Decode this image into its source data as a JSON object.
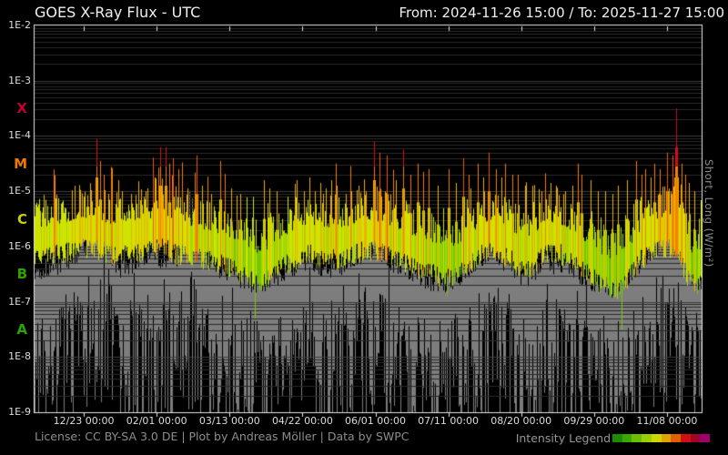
{
  "header": {
    "title": "GOES X-Ray Flux - UTC",
    "range": "From: 2024-11-26 15:00  /  To: 2025-11-27 15:00"
  },
  "footer": {
    "license": "License: CC BY-SA 3.0 DE | Plot by Andreas Möller | Data by SWPC",
    "legend_label": "Intensity Legend"
  },
  "chart_data": {
    "type": "area",
    "title": "GOES X-Ray Flux - UTC",
    "time_range": {
      "from": "2024-11-26 15:00",
      "to": "2025-11-27 15:00"
    },
    "days_total": 366,
    "right_axis_label": "Short, Long (W/m²)",
    "background": "#000000",
    "y_log_range": [
      -2,
      -9
    ],
    "y_ticks": [
      {
        "label": "1E-2",
        "log": -2
      },
      {
        "label": "1E-3",
        "log": -3
      },
      {
        "label": "1E-4",
        "log": -4
      },
      {
        "label": "1E-5",
        "log": -5
      },
      {
        "label": "1E-6",
        "log": -6
      },
      {
        "label": "1E-7",
        "log": -7
      },
      {
        "label": "1E-8",
        "log": -8
      },
      {
        "label": "1E-9",
        "log": -9
      }
    ],
    "x_ticks": [
      {
        "label": "12/23 00:00",
        "day": 27
      },
      {
        "label": "02/01 00:00",
        "day": 67
      },
      {
        "label": "03/13 00:00",
        "day": 107
      },
      {
        "label": "04/22 00:00",
        "day": 147
      },
      {
        "label": "06/01 00:00",
        "day": 187
      },
      {
        "label": "07/11 00:00",
        "day": 227
      },
      {
        "label": "08/20 00:00",
        "day": 267
      },
      {
        "label": "09/29 00:00",
        "day": 307
      },
      {
        "label": "11/08 00:00",
        "day": 347
      }
    ],
    "class_letters": [
      {
        "label": "X",
        "log": -3.5,
        "color": "#c3002f"
      },
      {
        "label": "M",
        "log": -4.5,
        "color": "#f07800"
      },
      {
        "label": "C",
        "log": -5.5,
        "color": "#c8d400"
      },
      {
        "label": "B",
        "log": -6.5,
        "color": "#2da300"
      },
      {
        "label": "A",
        "log": -7.5,
        "color": "#2da300"
      }
    ],
    "legend_colors": [
      "#1e8c00",
      "#3aa800",
      "#6cbf00",
      "#9ccf00",
      "#ccd800",
      "#dfa400",
      "#e06000",
      "#d01010",
      "#9c0824",
      "#9e006c"
    ],
    "intensity_bands": [
      {
        "max": -6.55,
        "color": "#1e9c00"
      },
      {
        "max": -6.15,
        "color": "#46b800"
      },
      {
        "max": -5.85,
        "color": "#74c900"
      },
      {
        "max": -5.55,
        "color": "#a4d800"
      },
      {
        "max": -5.1,
        "color": "#cfe300"
      },
      {
        "max": -4.75,
        "color": "#edb100"
      },
      {
        "max": -4.45,
        "color": "#f58000"
      },
      {
        "max": -4.3,
        "color": "#f05800"
      },
      {
        "max": -3.9,
        "color": "#dd1111"
      },
      {
        "max": -2.0,
        "color": "#c2093a"
      }
    ],
    "grid": {
      "minor_color": "#2a2a2a",
      "major_color": "#3d3d3d",
      "border_color": "#e6e6e6",
      "tick_color": "#e6e6e6"
    },
    "noise_seed": 1337,
    "series": {
      "long_flux": {
        "name": "Long",
        "base_points_log10": [
          [
            0,
            -5.75
          ],
          [
            12,
            -5.68
          ],
          [
            22,
            -5.6
          ],
          [
            30,
            -5.55
          ],
          [
            36,
            -5.6
          ],
          [
            44,
            -5.72
          ],
          [
            52,
            -5.68
          ],
          [
            60,
            -5.62
          ],
          [
            68,
            -5.5
          ],
          [
            76,
            -5.65
          ],
          [
            86,
            -5.72
          ],
          [
            96,
            -5.8
          ],
          [
            106,
            -5.9
          ],
          [
            114,
            -6.0
          ],
          [
            121,
            -6.2
          ],
          [
            127,
            -6.15
          ],
          [
            134,
            -5.95
          ],
          [
            142,
            -5.78
          ],
          [
            150,
            -5.68
          ],
          [
            158,
            -5.72
          ],
          [
            166,
            -5.78
          ],
          [
            174,
            -5.68
          ],
          [
            182,
            -5.58
          ],
          [
            190,
            -5.65
          ],
          [
            198,
            -5.75
          ],
          [
            206,
            -5.85
          ],
          [
            214,
            -5.98
          ],
          [
            222,
            -6.08
          ],
          [
            228,
            -6.12
          ],
          [
            236,
            -5.95
          ],
          [
            244,
            -5.7
          ],
          [
            250,
            -5.6
          ],
          [
            256,
            -5.68
          ],
          [
            262,
            -5.8
          ],
          [
            268,
            -5.95
          ],
          [
            274,
            -5.85
          ],
          [
            280,
            -5.7
          ],
          [
            286,
            -5.62
          ],
          [
            292,
            -5.75
          ],
          [
            298,
            -5.88
          ],
          [
            304,
            -6.05
          ],
          [
            310,
            -6.2
          ],
          [
            316,
            -6.32
          ],
          [
            322,
            -6.3
          ],
          [
            327,
            -6.05
          ],
          [
            332,
            -5.8
          ],
          [
            338,
            -5.62
          ],
          [
            344,
            -5.55
          ],
          [
            350,
            -5.58
          ],
          [
            354,
            -5.75
          ],
          [
            358,
            -6.1
          ],
          [
            362,
            -6.25
          ],
          [
            366,
            -6.15
          ]
        ],
        "peaks_log10": [
          [
            15,
            -5.2
          ],
          [
            22,
            -4.9
          ],
          [
            27,
            -5.1
          ],
          [
            34,
            -4.05
          ],
          [
            36,
            -4.45
          ],
          [
            38,
            -4.7
          ],
          [
            46,
            -4.8
          ],
          [
            53,
            -5.05
          ],
          [
            57,
            -4.9
          ],
          [
            61,
            -5.0
          ],
          [
            66,
            -4.75
          ],
          [
            69,
            -4.2
          ],
          [
            72,
            -4.2
          ],
          [
            74,
            -4.5
          ],
          [
            76,
            -4.4
          ],
          [
            79,
            -4.6
          ],
          [
            84,
            -4.95
          ],
          [
            89,
            -4.35
          ],
          [
            92,
            -4.9
          ],
          [
            97,
            -5.05
          ],
          [
            102,
            -4.45
          ],
          [
            108,
            -4.95
          ],
          [
            113,
            -5.05
          ],
          [
            120,
            -5.1
          ],
          [
            126,
            -4.8
          ],
          [
            129,
            -4.95
          ],
          [
            133,
            -5.0
          ],
          [
            139,
            -5.1
          ],
          [
            144,
            -4.8
          ],
          [
            148,
            -5.0
          ],
          [
            151,
            -4.75
          ],
          [
            154,
            -5.0
          ],
          [
            157,
            -4.85
          ],
          [
            160,
            -4.95
          ],
          [
            163,
            -4.8
          ],
          [
            166,
            -4.9
          ],
          [
            171,
            -5.05
          ],
          [
            174,
            -5.0
          ],
          [
            178,
            -4.9
          ],
          [
            182,
            -5.0
          ],
          [
            186,
            -4.1
          ],
          [
            189,
            -4.3
          ],
          [
            193,
            -4.35
          ],
          [
            198,
            -4.8
          ],
          [
            202,
            -4.25
          ],
          [
            206,
            -4.7
          ],
          [
            210,
            -4.5
          ],
          [
            213,
            -4.65
          ],
          [
            216,
            -4.6
          ],
          [
            221,
            -4.9
          ],
          [
            227,
            -4.6
          ],
          [
            231,
            -4.85
          ],
          [
            235,
            -4.4
          ],
          [
            238,
            -4.7
          ],
          [
            243,
            -4.5
          ],
          [
            246,
            -4.75
          ],
          [
            249,
            -4.3
          ],
          [
            253,
            -4.6
          ],
          [
            256,
            -4.75
          ],
          [
            258,
            -4.5
          ],
          [
            262,
            -4.7
          ],
          [
            265,
            -4.7
          ],
          [
            269,
            -4.9
          ],
          [
            273,
            -4.9
          ],
          [
            278,
            -5.0
          ],
          [
            282,
            -5.05
          ],
          [
            286,
            -4.9
          ],
          [
            291,
            -5.0
          ],
          [
            295,
            -4.9
          ],
          [
            298,
            -4.5
          ],
          [
            300,
            -4.7
          ],
          [
            305,
            -4.8
          ],
          [
            309,
            -5.0
          ],
          [
            313,
            -5.0
          ],
          [
            317,
            -5.05
          ],
          [
            320,
            -4.9
          ],
          [
            325,
            -4.8
          ],
          [
            330,
            -4.45
          ],
          [
            333,
            -4.7
          ],
          [
            335,
            -4.6
          ],
          [
            338,
            -4.75
          ],
          [
            340,
            -4.5
          ],
          [
            343,
            -4.6
          ],
          [
            347,
            -4.3
          ],
          [
            350,
            -4.35
          ],
          [
            352,
            -3.5
          ],
          [
            355,
            -4.5
          ],
          [
            357,
            -4.7
          ],
          [
            359,
            -4.85
          ],
          [
            362,
            -5.0
          ]
        ],
        "down_spikes_log10": [
          [
            121,
            -7.3
          ],
          [
            226,
            -6.9
          ],
          [
            322,
            -7.5
          ]
        ]
      },
      "short_flux": {
        "name": "Short",
        "color": "#7d7d7d",
        "top_points_log10": [
          [
            0,
            -6.45
          ],
          [
            10,
            -6.35
          ],
          [
            20,
            -6.15
          ],
          [
            28,
            -5.95
          ],
          [
            33,
            -5.6
          ],
          [
            38,
            -5.9
          ],
          [
            46,
            -6.35
          ],
          [
            56,
            -6.25
          ],
          [
            64,
            -6.05
          ],
          [
            72,
            -6.25
          ],
          [
            80,
            -6.1
          ],
          [
            86,
            -5.55
          ],
          [
            92,
            -6.0
          ],
          [
            100,
            -6.4
          ],
          [
            110,
            -6.5
          ],
          [
            121,
            -6.65
          ],
          [
            130,
            -6.55
          ],
          [
            140,
            -6.35
          ],
          [
            150,
            -6.2
          ],
          [
            160,
            -6.4
          ],
          [
            170,
            -6.3
          ],
          [
            180,
            -6.1
          ],
          [
            186,
            -5.95
          ],
          [
            194,
            -6.2
          ],
          [
            204,
            -6.4
          ],
          [
            214,
            -6.55
          ],
          [
            224,
            -6.65
          ],
          [
            234,
            -6.45
          ],
          [
            244,
            -6.2
          ],
          [
            252,
            -6.1
          ],
          [
            260,
            -6.3
          ],
          [
            268,
            -6.55
          ],
          [
            278,
            -6.35
          ],
          [
            288,
            -6.25
          ],
          [
            298,
            -6.45
          ],
          [
            308,
            -6.65
          ],
          [
            316,
            -6.75
          ],
          [
            324,
            -6.55
          ],
          [
            332,
            -6.25
          ],
          [
            340,
            -6.0
          ],
          [
            347,
            -5.8
          ],
          [
            352,
            -5.75
          ],
          [
            357,
            -6.3
          ],
          [
            362,
            -6.55
          ],
          [
            366,
            -6.6
          ]
        ]
      }
    }
  }
}
